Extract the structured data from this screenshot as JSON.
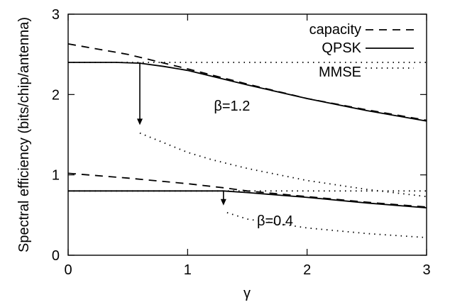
{
  "chart_data": {
    "type": "line",
    "xlabel": "γ",
    "ylabel": "Spectral efficiency (bits/chip/antenna)",
    "xlim": [
      0,
      3
    ],
    "ylim": [
      0,
      3
    ],
    "x_ticks": [
      "0",
      "1",
      "2",
      "3"
    ],
    "y_ticks": [
      "0",
      "1",
      "2",
      "3"
    ],
    "grid": false,
    "legend_position": "top-right",
    "legend": [
      {
        "label": "capacity",
        "style": "dashed"
      },
      {
        "label": "QPSK",
        "style": "solid"
      },
      {
        "label": "MMSE",
        "style": "dotted"
      }
    ],
    "annotations": [
      {
        "text": "β=1.2",
        "x": 1.22,
        "y": 1.8
      },
      {
        "text": "β=0.4",
        "x": 1.58,
        "y": 0.37
      }
    ],
    "arrows": [
      {
        "x": 0.6,
        "y_from": 2.4,
        "y_to": 1.62
      },
      {
        "x": 1.3,
        "y_from": 0.8,
        "y_to": 0.62
      }
    ],
    "series": [
      {
        "group": "β=1.2",
        "style": "dashed",
        "x": [
          0,
          0.5,
          1.0,
          1.5,
          2.0,
          2.5,
          3.0
        ],
        "y": [
          2.63,
          2.5,
          2.32,
          2.13,
          1.95,
          1.81,
          1.68
        ]
      },
      {
        "group": "β=1.2",
        "style": "solid",
        "x": [
          0,
          0.4,
          0.6,
          0.8,
          1.0,
          1.5,
          2.0,
          2.5,
          3.0
        ],
        "y": [
          2.4,
          2.4,
          2.39,
          2.35,
          2.3,
          2.12,
          1.95,
          1.8,
          1.67
        ]
      },
      {
        "group": "β=1.2",
        "style": "dotted",
        "x": [
          0,
          3.0
        ],
        "y": [
          2.4,
          2.4
        ]
      },
      {
        "group": "β=1.2",
        "style": "dotted",
        "x": [
          0.6,
          0.8,
          1.0,
          1.2,
          1.5,
          2.0,
          2.5,
          3.0
        ],
        "y": [
          1.52,
          1.4,
          1.28,
          1.19,
          1.08,
          0.93,
          0.82,
          0.73
        ]
      },
      {
        "group": "β=0.4",
        "style": "dashed",
        "x": [
          0,
          0.5,
          1.0,
          1.3,
          1.5,
          2.0,
          2.5,
          3.0
        ],
        "y": [
          1.02,
          0.96,
          0.89,
          0.84,
          0.8,
          0.73,
          0.66,
          0.6
        ]
      },
      {
        "group": "β=0.4",
        "style": "solid",
        "x": [
          0,
          1.0,
          1.3,
          1.5,
          2.0,
          2.5,
          3.0
        ],
        "y": [
          0.8,
          0.8,
          0.8,
          0.78,
          0.72,
          0.65,
          0.59
        ]
      },
      {
        "group": "β=0.4",
        "style": "dotted",
        "x": [
          0,
          3.0
        ],
        "y": [
          0.8,
          0.8
        ]
      },
      {
        "group": "β=0.4",
        "style": "dotted",
        "x": [
          1.33,
          1.5,
          2.0,
          2.5,
          3.0
        ],
        "y": [
          0.53,
          0.45,
          0.34,
          0.27,
          0.22
        ]
      }
    ]
  }
}
